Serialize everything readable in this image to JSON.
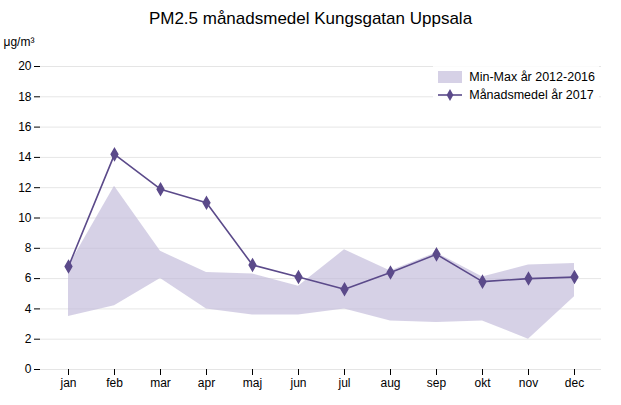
{
  "chart_data": {
    "type": "line",
    "title": "PM2.5 månadsmedel Kungsgatan Uppsala",
    "ylabel": "μg/m³",
    "categories": [
      "jan",
      "feb",
      "mar",
      "apr",
      "maj",
      "jun",
      "jul",
      "aug",
      "sep",
      "okt",
      "nov",
      "dec"
    ],
    "series": [
      {
        "name": "Min-Max år 2012-2016",
        "type": "band",
        "color": "#c0b8d8",
        "low": [
          3.5,
          4.2,
          6.0,
          4.0,
          3.6,
          3.6,
          4.0,
          3.2,
          3.1,
          3.2,
          2.0,
          4.8
        ],
        "high": [
          6.8,
          12.1,
          7.8,
          6.4,
          6.3,
          5.5,
          7.9,
          6.5,
          7.7,
          6.1,
          6.9,
          7.0
        ]
      },
      {
        "name": "Månadsmedel år 2017",
        "type": "line",
        "color": "#5b4a8a",
        "marker": "diamond",
        "values": [
          6.8,
          14.2,
          11.9,
          11.0,
          6.9,
          6.1,
          5.3,
          6.4,
          7.6,
          5.8,
          6.0,
          6.1
        ]
      }
    ],
    "ylim": [
      0,
      20
    ],
    "yticks": [
      0,
      2,
      4,
      6,
      8,
      10,
      12,
      14,
      16,
      18,
      20
    ],
    "grid": true,
    "legend": "upper right"
  }
}
